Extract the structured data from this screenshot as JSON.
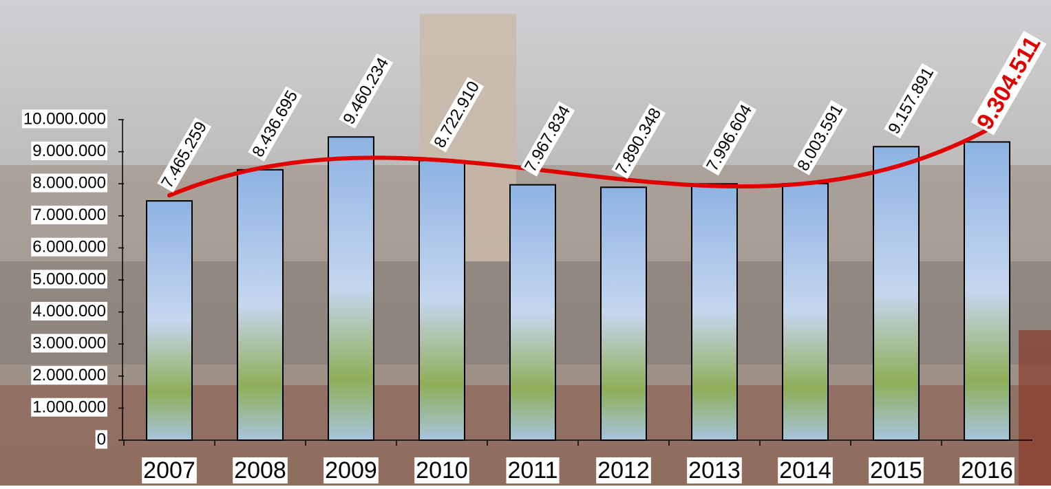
{
  "chart_data": {
    "type": "bar",
    "categories": [
      "2007",
      "2008",
      "2009",
      "2010",
      "2011",
      "2012",
      "2013",
      "2014",
      "2015",
      "2016"
    ],
    "values": [
      7465259,
      8436695,
      9460234,
      8722910,
      7967834,
      7890348,
      7996604,
      8003591,
      9157891,
      9304511
    ],
    "value_labels": [
      "7.465.259",
      "8.436.695",
      "9.460.234",
      "8.722.910",
      "7.967.834",
      "7.890.348",
      "7.996.604",
      "8.003.591",
      "9.157.891",
      "9.304.511"
    ],
    "value_label_colors": [
      "#000000",
      "#000000",
      "#000000",
      "#000000",
      "#000000",
      "#000000",
      "#000000",
      "#000000",
      "#000000",
      "#e00000"
    ],
    "ylim": [
      0,
      10000000
    ],
    "yticks": [
      0,
      {
        "value": 1000000,
        "label": "1.000.000"
      },
      {
        "value": 2000000,
        "label": "2.000.000"
      },
      {
        "value": 3000000,
        "label": "3.000.000"
      },
      {
        "value": 4000000,
        "label": "4.000.000"
      },
      {
        "value": 5000000,
        "label": "5.000.000"
      },
      {
        "value": 6000000,
        "label": "6.000.000"
      },
      {
        "value": 7000000,
        "label": "7.000.000"
      },
      {
        "value": 8000000,
        "label": "8.000.000"
      },
      {
        "value": 9000000,
        "label": "9.000.000"
      },
      {
        "value": 10000000,
        "label": "10.000.000"
      }
    ],
    "trendline": {
      "color": "#e00000"
    }
  }
}
